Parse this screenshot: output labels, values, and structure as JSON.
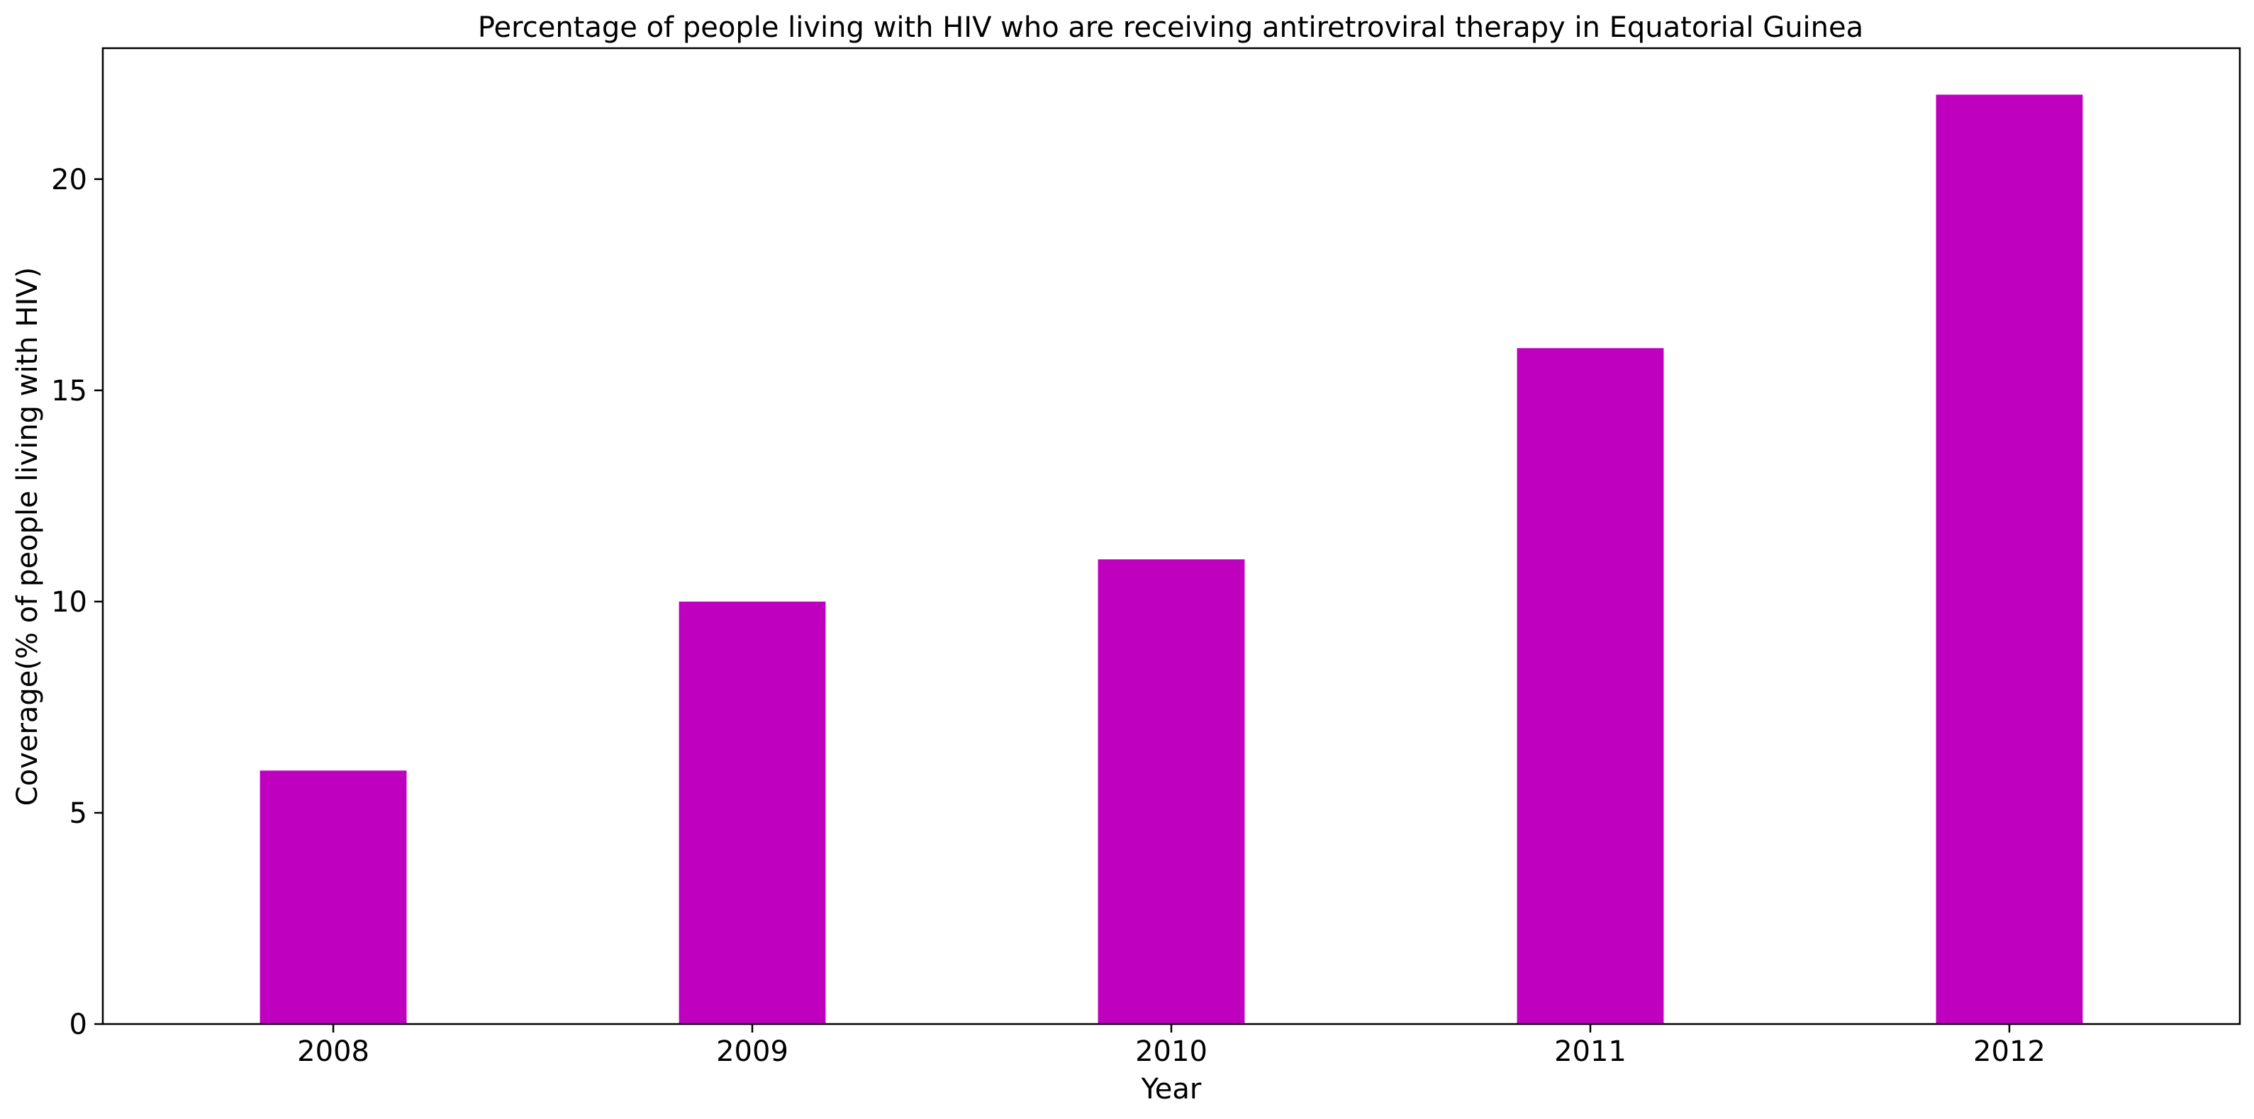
{
  "chart_data": {
    "type": "bar",
    "title": "Percentage of people living with HIV who are receiving antiretroviral therapy in Equatorial Guinea",
    "xlabel": "Year",
    "ylabel": "Coverage(% of people living with HIV)",
    "categories": [
      "2008",
      "2009",
      "2010",
      "2011",
      "2012"
    ],
    "values": [
      6,
      10,
      11,
      16,
      22
    ],
    "ylim": [
      0,
      23.1
    ],
    "yticks": [
      0,
      5,
      10,
      15,
      20
    ],
    "grid": false,
    "legend": "none",
    "bar_color": "#bf00bf"
  }
}
